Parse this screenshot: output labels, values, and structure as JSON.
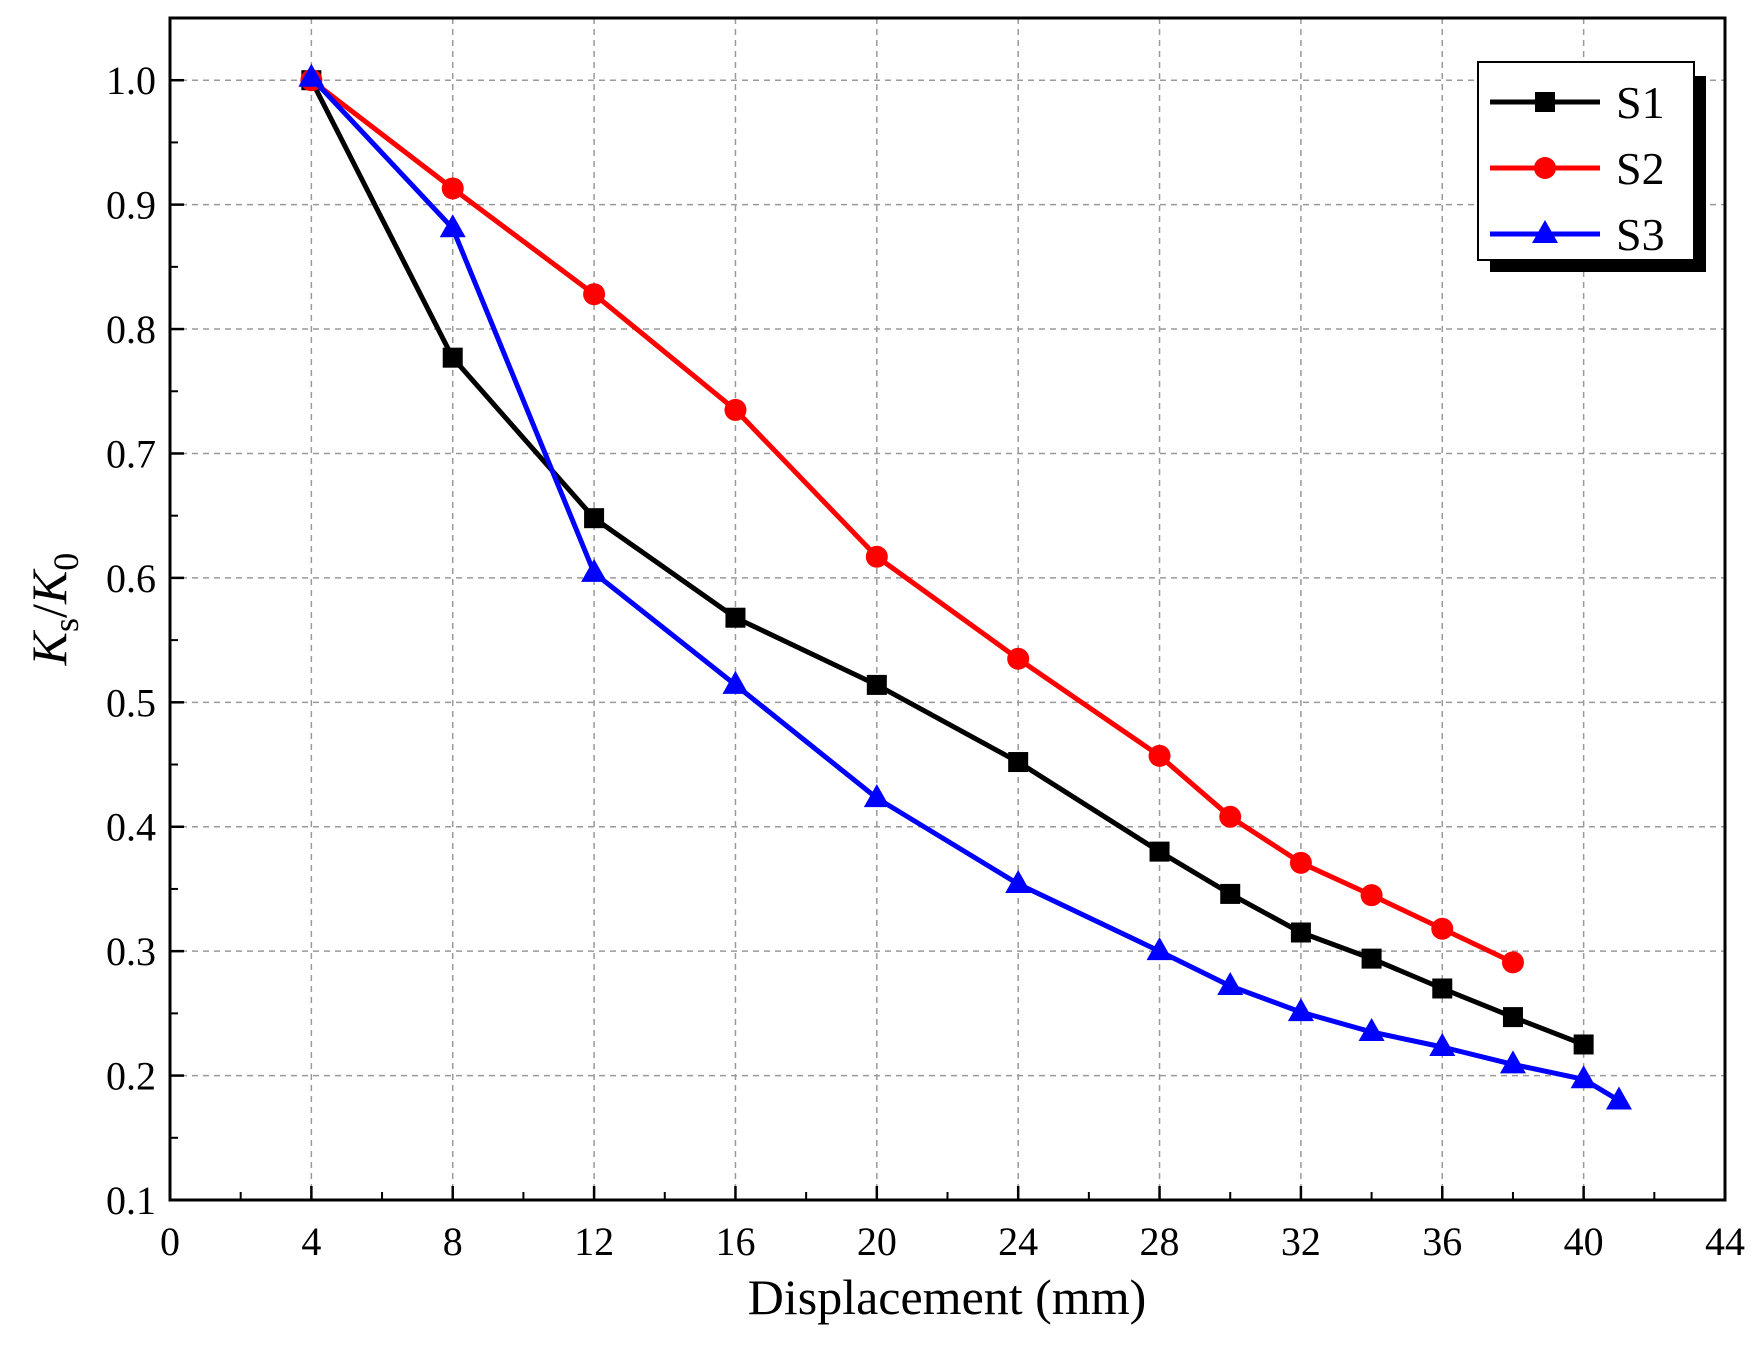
{
  "chart_data": {
    "type": "line",
    "title": "",
    "xlabel": "Displacement (mm)",
    "ylabel": {
      "main1": "K",
      "sub1": "s",
      "sep": "/",
      "main2": "K",
      "sub2": "0"
    },
    "xlim": [
      0,
      44
    ],
    "ylim": [
      0.1,
      1.05
    ],
    "xticks": [
      "0",
      "4",
      "8",
      "12",
      "16",
      "20",
      "24",
      "28",
      "32",
      "36",
      "40",
      "44"
    ],
    "yticks": [
      "0.1",
      "0.2",
      "0.3",
      "0.4",
      "0.5",
      "0.6",
      "0.7",
      "0.8",
      "0.9",
      "1.0"
    ],
    "grid": true,
    "legend_position": "top-right",
    "series": [
      {
        "name": "S1",
        "color": "#000000",
        "marker": "square",
        "x": [
          4,
          8,
          12,
          16,
          20,
          24,
          28,
          30,
          32,
          34,
          36,
          38,
          40
        ],
        "y": [
          1.0,
          0.777,
          0.648,
          0.568,
          0.514,
          0.452,
          0.38,
          0.346,
          0.315,
          0.294,
          0.27,
          0.247,
          0.225
        ]
      },
      {
        "name": "S2",
        "color": "#ff0000",
        "marker": "circle",
        "x": [
          4,
          8,
          12,
          16,
          20,
          24,
          28,
          30,
          32,
          34,
          36,
          38
        ],
        "y": [
          1.0,
          0.913,
          0.828,
          0.735,
          0.617,
          0.535,
          0.457,
          0.408,
          0.371,
          0.345,
          0.318,
          0.291
        ]
      },
      {
        "name": "S3",
        "color": "#0000ff",
        "marker": "triangle",
        "x": [
          4,
          8,
          12,
          16,
          20,
          24,
          28,
          30,
          32,
          34,
          36,
          38,
          40,
          41
        ],
        "y": [
          1.002,
          0.881,
          0.604,
          0.514,
          0.423,
          0.354,
          0.3,
          0.272,
          0.251,
          0.235,
          0.223,
          0.209,
          0.197,
          0.18
        ]
      }
    ]
  }
}
